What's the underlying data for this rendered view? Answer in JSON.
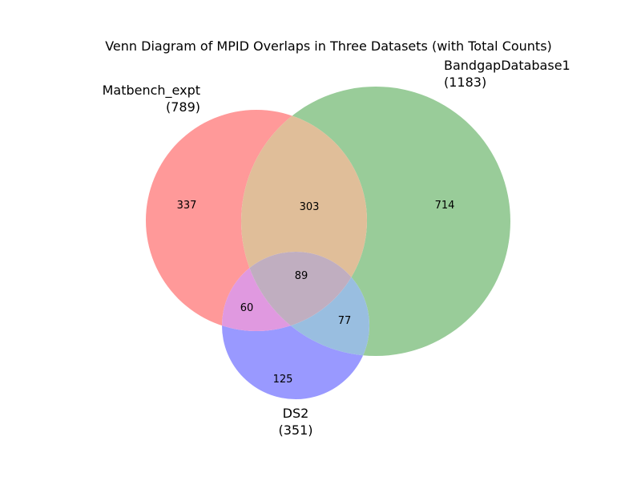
{
  "title": "Venn Diagram of MPID Overlaps in Three Datasets (with Total Counts)",
  "colors": {
    "matbench": "#ff9999",
    "bandgap": "#99cc99",
    "ds2": "#9999ff",
    "matbench_bandgap": "#e0be99",
    "matbench_ds2": "#e099e0",
    "bandgap_ds2": "#99bee0",
    "all_three": "#c0aec0"
  },
  "sets": {
    "matbench": {
      "name": "Matbench_expt",
      "total": "(789)"
    },
    "bandgap": {
      "name": "BandgapDatabase1",
      "total": "(1183)"
    },
    "ds2": {
      "name": "DS2",
      "total": "(351)"
    }
  },
  "regions": {
    "matbench_only": "337",
    "bandgap_only": "714",
    "ds2_only": "125",
    "matbench_bandgap": "303",
    "matbench_ds2": "60",
    "bandgap_ds2": "77",
    "all_three": "89"
  }
}
